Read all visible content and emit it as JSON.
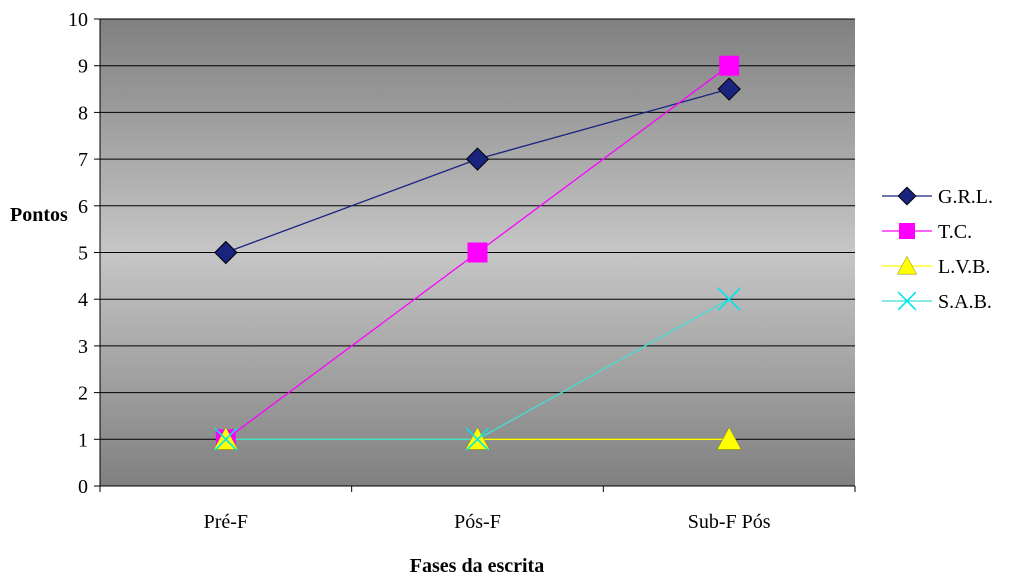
{
  "chart_data": {
    "type": "line",
    "categories": [
      "Pré-F",
      "Pós-F",
      "Sub-F Pós"
    ],
    "series": [
      {
        "name": "G.R.L.",
        "values": [
          5,
          7,
          8.5
        ],
        "color": "#1a237e",
        "marker": "diamond",
        "line_color": "#1a237e"
      },
      {
        "name": "T.C.",
        "values": [
          1,
          5,
          9
        ],
        "color": "#ff00ff",
        "marker": "square",
        "line_color": "#ff00ff"
      },
      {
        "name": "L.V.B.",
        "values": [
          1,
          1,
          1
        ],
        "color": "#ffff00",
        "marker": "triangle",
        "line_color": "#ffff00"
      },
      {
        "name": "S.A.B.",
        "values": [
          1,
          1,
          4
        ],
        "color": "#00e5ee",
        "marker": "x",
        "line_color": "#40e0d0"
      }
    ],
    "xlabel": "Fases da escrita",
    "ylabel": "Pontos",
    "ylim": [
      0,
      10
    ],
    "yticks": [
      "0",
      "1",
      "2",
      "3",
      "4",
      "5",
      "6",
      "7",
      "8",
      "9",
      "10"
    ],
    "grid": true,
    "legend_position": "right",
    "plot_background": "gradient gray"
  }
}
